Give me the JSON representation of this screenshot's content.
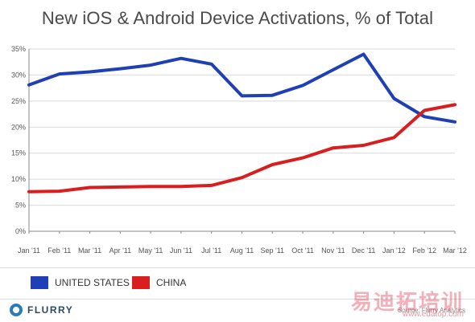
{
  "title": "New iOS & Android Device Activations, % of Total",
  "chart_data": {
    "type": "line",
    "categories": [
      "Jan '11",
      "Feb '11",
      "Mar '11",
      "Apr '11",
      "May '11",
      "Jun '11",
      "Jul '11",
      "Aug '11",
      "Sep '11",
      "Oct '11",
      "Nov '11",
      "Dec '11",
      "Jan '12",
      "Feb '12",
      "Mar '12"
    ],
    "series": [
      {
        "name": "UNITED STATES",
        "color": "#1f3fb5",
        "values": [
          28.1,
          30.2,
          30.6,
          31.2,
          31.9,
          33.2,
          32.1,
          26.0,
          26.1,
          28.0,
          31.0,
          34.0,
          25.5,
          22.0,
          21.0
        ]
      },
      {
        "name": "CHINA",
        "color": "#d81e1e",
        "values": [
          7.6,
          7.7,
          8.4,
          8.5,
          8.6,
          8.6,
          8.8,
          10.3,
          12.8,
          14.1,
          16.0,
          16.5,
          18.0,
          23.2,
          24.3
        ]
      }
    ],
    "yticks": [
      "0%",
      "5%",
      "10%",
      "15%",
      "20%",
      "25%",
      "30%",
      "35%"
    ],
    "ylim": [
      0,
      35
    ],
    "grid": true,
    "legend_position": "bottom"
  },
  "footer": {
    "logo_text": "FLURRY",
    "source": "Source: Flurry Analytics"
  },
  "watermark": {
    "text": "易迪拓培训",
    "url": "www.edatop.com"
  }
}
